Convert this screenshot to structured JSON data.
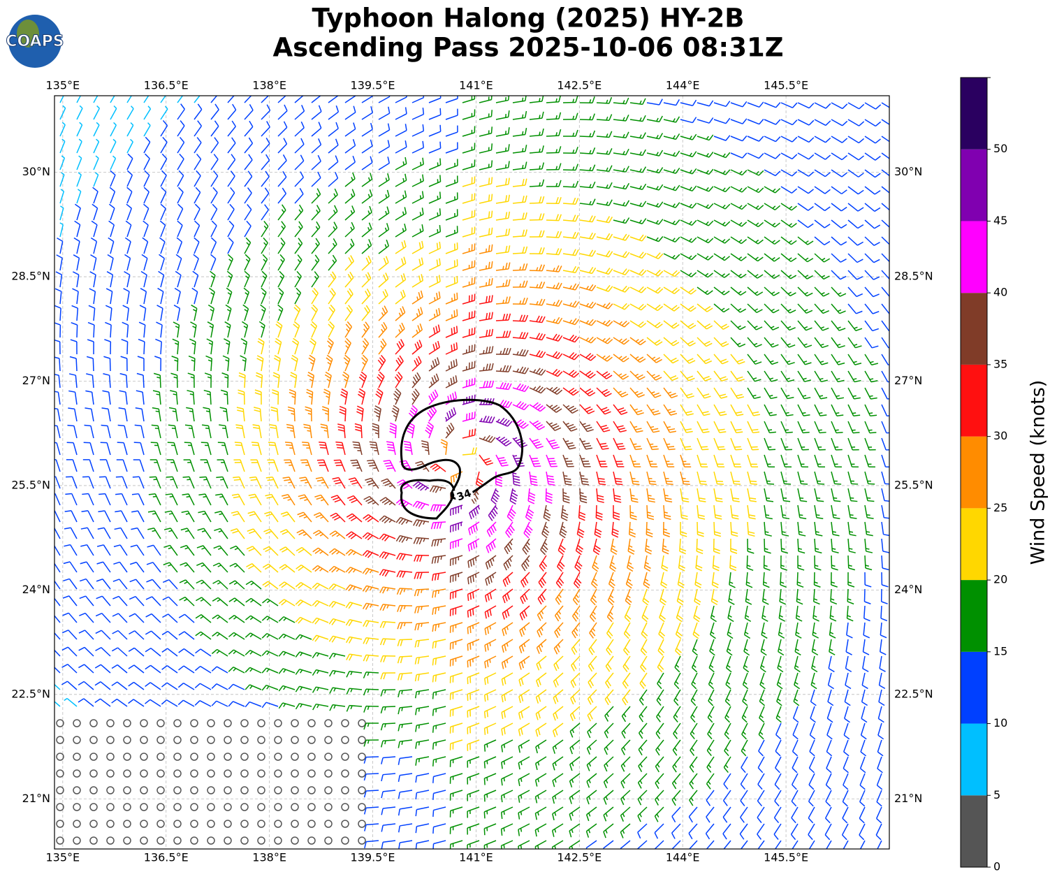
{
  "title": "Typhoon Halong (2025) HY-2B",
  "subtitle": "Ascending Pass 2025-10-06 08:31Z",
  "logo": "COAPS",
  "map": {
    "lonlim": [
      134.88,
      147.0
    ],
    "latlim": [
      20.28,
      31.1
    ],
    "lon_ticks": [
      {
        "value": 135,
        "label": "135°E"
      },
      {
        "value": 136.5,
        "label": "136.5°E"
      },
      {
        "value": 138,
        "label": "138°E"
      },
      {
        "value": 139.5,
        "label": "139.5°E"
      },
      {
        "value": 141,
        "label": "141°E"
      },
      {
        "value": 142.5,
        "label": "142.5°E"
      },
      {
        "value": 144,
        "label": "144°E"
      },
      {
        "value": 145.5,
        "label": "145.5°E"
      }
    ],
    "lat_ticks": [
      {
        "value": 21,
        "label": "21°N"
      },
      {
        "value": 22.5,
        "label": "22.5°N"
      },
      {
        "value": 24,
        "label": "24°N"
      },
      {
        "value": 25.5,
        "label": "25.5°N"
      },
      {
        "value": 27,
        "label": "27°N"
      },
      {
        "value": 28.5,
        "label": "28.5°N"
      },
      {
        "value": 30,
        "label": "30°N"
      }
    ],
    "contour_label": "34"
  },
  "colorbar": {
    "label": "Wind Speed (knots)",
    "lim": [
      0,
      55
    ],
    "ticks": [
      0,
      5,
      10,
      15,
      20,
      25,
      30,
      35,
      40,
      45,
      50
    ],
    "colors": [
      "#555555",
      "#00bfff",
      "#0040ff",
      "#009000",
      "#ffd700",
      "#ff8c00",
      "#ff1010",
      "#803c28",
      "#ff00ff",
      "#8000b0",
      "#2a0060"
    ]
  }
}
